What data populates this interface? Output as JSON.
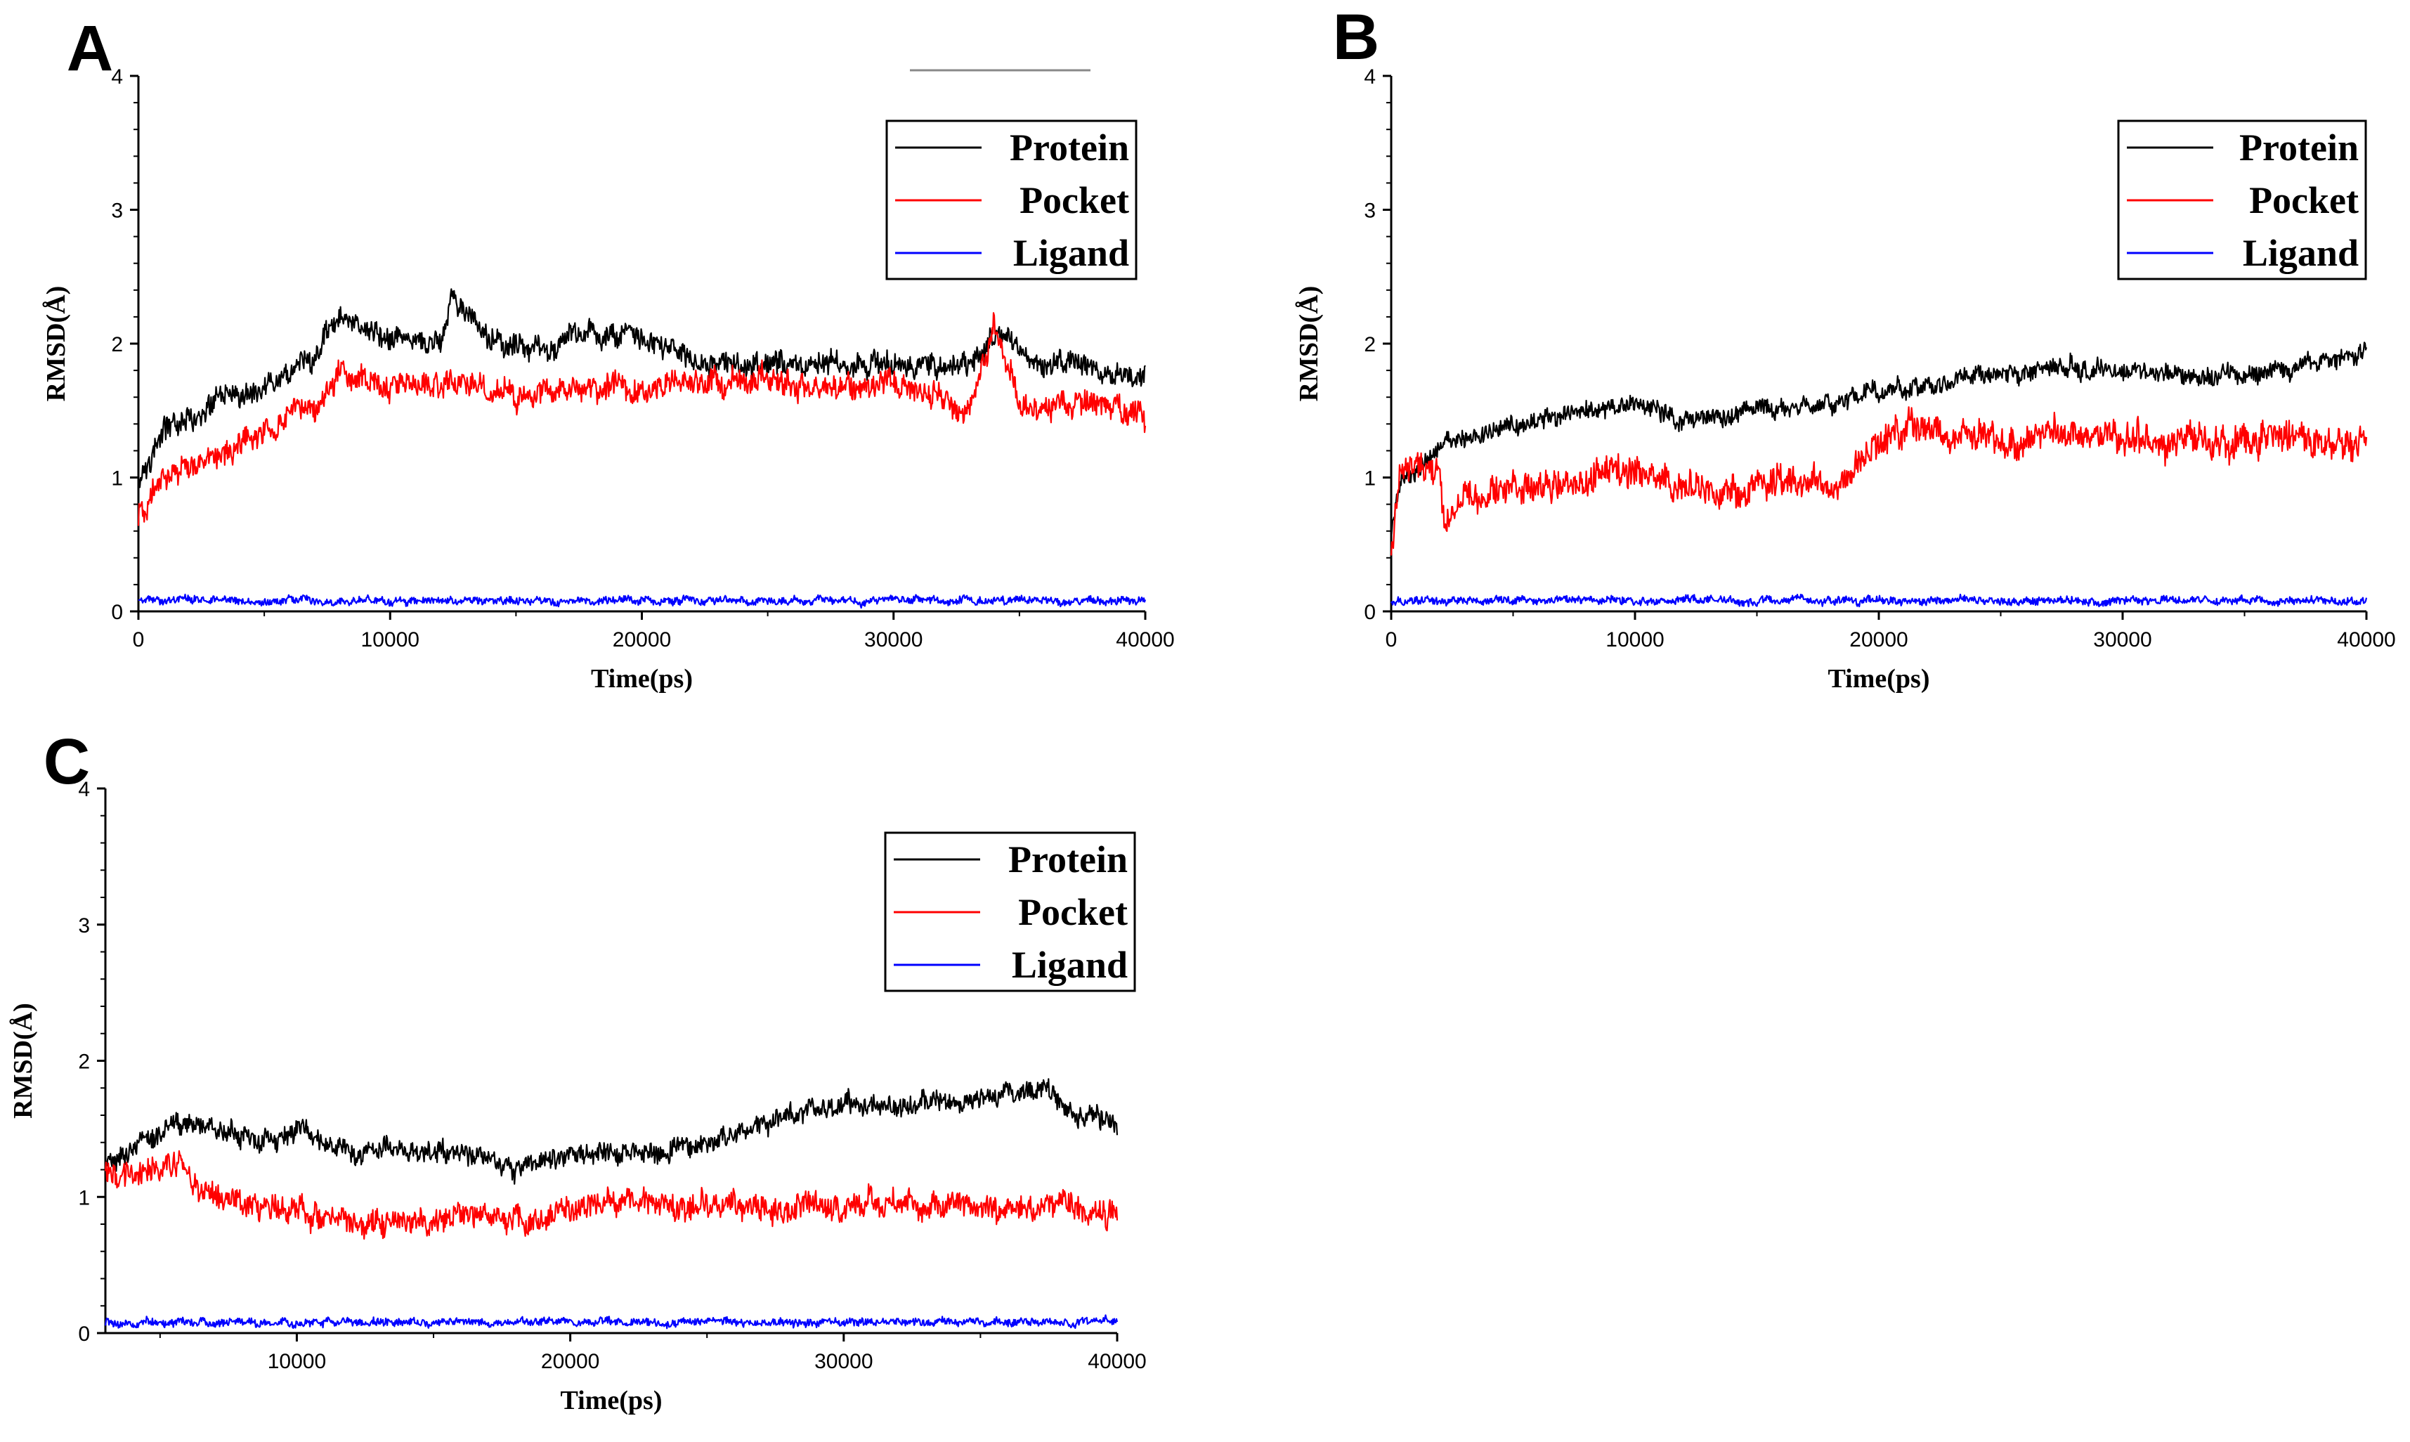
{
  "chart_data": [
    {
      "type": "line",
      "panel_label": "A",
      "xlabel": "Time(ps)",
      "ylabel": "RMSD(Å)",
      "xlim": [
        0,
        40000
      ],
      "ylim": [
        0,
        4
      ],
      "xticks": [
        0,
        10000,
        20000,
        30000,
        40000
      ],
      "yticks": [
        0,
        1,
        2,
        3,
        4
      ],
      "legend": [
        "Protein",
        "Pocket",
        "Ligand"
      ],
      "legend_position": "top-right",
      "series": [
        {
          "name": "Protein",
          "color": "#000000",
          "noise": 0.09,
          "x": [
            0,
            1000,
            3000,
            5000,
            7000,
            8000,
            10000,
            12000,
            12500,
            14000,
            16000,
            18000,
            20000,
            22000,
            25000,
            28000,
            30000,
            33000,
            34000,
            36000,
            38000,
            40000
          ],
          "values": [
            1.0,
            1.35,
            1.55,
            1.7,
            1.9,
            2.2,
            2.0,
            2.0,
            2.35,
            2.0,
            1.95,
            2.1,
            2.05,
            1.85,
            1.85,
            1.85,
            1.85,
            1.85,
            2.05,
            1.85,
            1.8,
            1.75
          ]
        },
        {
          "name": "Pocket",
          "color": "#ff0000",
          "noise": 0.1,
          "x": [
            0,
            1000,
            3000,
            5000,
            7000,
            8000,
            10000,
            13000,
            15000,
            18000,
            20000,
            22000,
            25000,
            28000,
            30000,
            33000,
            34000,
            35000,
            38000,
            40000
          ],
          "values": [
            0.7,
            1.0,
            1.15,
            1.35,
            1.55,
            1.75,
            1.7,
            1.7,
            1.6,
            1.7,
            1.65,
            1.7,
            1.75,
            1.65,
            1.7,
            1.5,
            2.1,
            1.55,
            1.55,
            1.5
          ]
        },
        {
          "name": "Ligand",
          "color": "#0000ff",
          "noise": 0.03,
          "x": [
            0,
            40000
          ],
          "values": [
            0.08,
            0.08
          ]
        }
      ]
    },
    {
      "type": "line",
      "panel_label": "B",
      "xlabel": "Time(ps)",
      "ylabel": "RMSD(Å)",
      "xlim": [
        0,
        40000
      ],
      "ylim": [
        0,
        4
      ],
      "xticks": [
        0,
        10000,
        20000,
        30000,
        40000
      ],
      "yticks": [
        0,
        1,
        2,
        3,
        4
      ],
      "legend": [
        "Protein",
        "Pocket",
        "Ligand"
      ],
      "legend_position": "top-right",
      "series": [
        {
          "name": "Protein",
          "color": "#000000",
          "noise": 0.07,
          "x": [
            0,
            500,
            2000,
            4000,
            6000,
            8000,
            10000,
            12000,
            15000,
            18000,
            20000,
            22000,
            25000,
            27000,
            30000,
            33000,
            36000,
            38000,
            40000
          ],
          "values": [
            0.6,
            1.0,
            1.25,
            1.35,
            1.45,
            1.5,
            1.55,
            1.45,
            1.5,
            1.55,
            1.65,
            1.7,
            1.75,
            1.85,
            1.8,
            1.75,
            1.8,
            1.85,
            1.95
          ]
        },
        {
          "name": "Pocket",
          "color": "#ff0000",
          "noise": 0.12,
          "x": [
            0,
            300,
            1000,
            2000,
            2200,
            3000,
            5000,
            8000,
            10000,
            12000,
            15000,
            18000,
            19000,
            20000,
            22000,
            23000,
            25000,
            28000,
            30000,
            33000,
            35000,
            38000,
            40000
          ],
          "values": [
            0.4,
            1.0,
            1.15,
            1.0,
            0.55,
            0.9,
            0.9,
            1.0,
            1.05,
            0.9,
            0.95,
            1.0,
            1.05,
            1.3,
            1.4,
            1.35,
            1.25,
            1.35,
            1.3,
            1.25,
            1.3,
            1.25,
            1.25
          ]
        },
        {
          "name": "Ligand",
          "color": "#0000ff",
          "noise": 0.03,
          "x": [
            0,
            40000
          ],
          "values": [
            0.08,
            0.08
          ]
        }
      ]
    },
    {
      "type": "line",
      "panel_label": "C",
      "xlabel": "Time(ps)",
      "ylabel": "RMSD(Å)",
      "xlim": [
        3000,
        40000
      ],
      "ylim": [
        0,
        4
      ],
      "xticks": [
        10000,
        20000,
        30000,
        40000
      ],
      "yticks": [
        0,
        1,
        2,
        3,
        4
      ],
      "legend": [
        "Protein",
        "Pocket",
        "Ligand"
      ],
      "legend_position": "top-right",
      "series": [
        {
          "name": "Protein",
          "color": "#000000",
          "noise": 0.08,
          "x": [
            3000,
            4000,
            5500,
            7000,
            9000,
            10000,
            12000,
            14000,
            16000,
            18000,
            20000,
            22000,
            24000,
            26000,
            28000,
            30000,
            32000,
            34000,
            36000,
            37500,
            38500,
            40000
          ],
          "values": [
            1.25,
            1.3,
            1.55,
            1.5,
            1.4,
            1.5,
            1.35,
            1.35,
            1.3,
            1.2,
            1.3,
            1.3,
            1.35,
            1.45,
            1.6,
            1.7,
            1.65,
            1.7,
            1.75,
            1.8,
            1.6,
            1.55
          ]
        },
        {
          "name": "Pocket",
          "color": "#ff0000",
          "noise": 0.1,
          "x": [
            3000,
            4000,
            5500,
            7000,
            9000,
            11000,
            12500,
            14000,
            17000,
            18500,
            20000,
            22000,
            25000,
            28000,
            30000,
            33000,
            36000,
            38000,
            40000
          ],
          "values": [
            1.2,
            1.15,
            1.25,
            1.0,
            0.9,
            0.85,
            0.8,
            0.85,
            0.85,
            0.8,
            0.95,
            0.95,
            0.95,
            0.9,
            0.95,
            0.95,
            0.9,
            0.95,
            0.85
          ]
        },
        {
          "name": "Ligand",
          "color": "#0000ff",
          "noise": 0.03,
          "x": [
            3000,
            40000
          ],
          "values": [
            0.08,
            0.08
          ]
        }
      ]
    }
  ]
}
